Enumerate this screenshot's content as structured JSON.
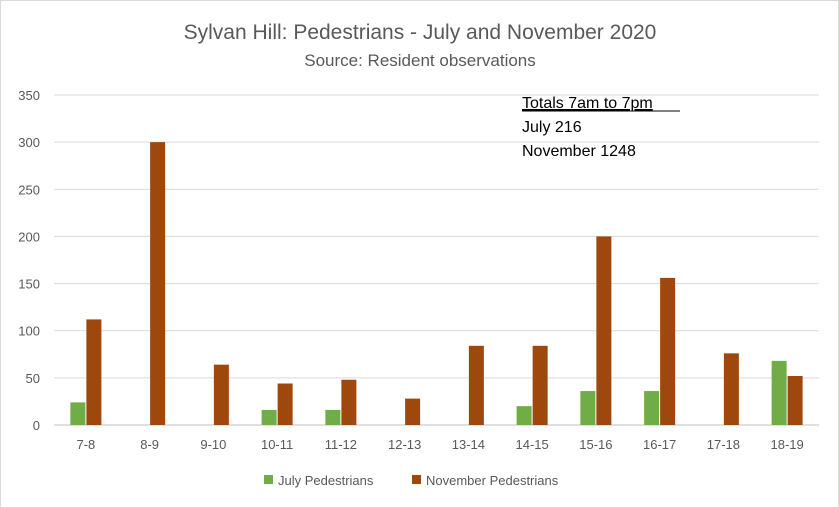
{
  "chart_data": {
    "type": "bar",
    "title": "Sylvan Hill: Pedestrians - July and November 2020",
    "subtitle": "Source: Resident observations",
    "xlabel": "",
    "ylabel": "",
    "ylim": [
      0,
      350
    ],
    "yticks": [
      0,
      50,
      100,
      150,
      200,
      250,
      300,
      350
    ],
    "grid": true,
    "legend_position": "bottom",
    "categories": [
      "7-8",
      "8-9",
      "9-10",
      "10-11",
      "11-12",
      "12-13",
      "13-14",
      "14-15",
      "15-16",
      "16-17",
      "17-18",
      "18-19"
    ],
    "series": [
      {
        "name": "July Pedestrians",
        "color": "#70ad47",
        "values": [
          24,
          0,
          0,
          16,
          16,
          0,
          0,
          20,
          36,
          36,
          0,
          68
        ]
      },
      {
        "name": "November Pedestrians",
        "color": "#9e480e",
        "values": [
          112,
          300,
          64,
          44,
          48,
          28,
          84,
          84,
          200,
          156,
          76,
          52
        ]
      }
    ],
    "annotation": {
      "heading": "Totals 7am to 7pm",
      "lines": [
        "July 216",
        "November 1248"
      ]
    }
  }
}
